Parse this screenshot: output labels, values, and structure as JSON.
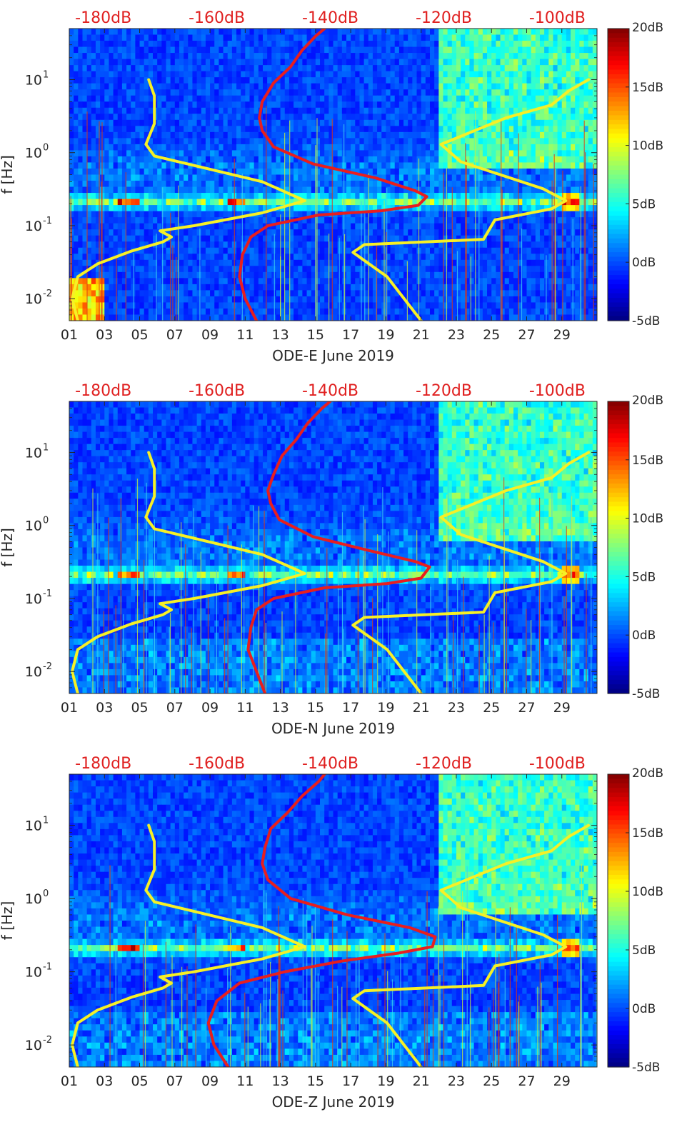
{
  "chart_data": [
    {
      "type": "heatmap",
      "title": "",
      "xlabel": "ODE-E June 2019",
      "ylabel": "f [Hz]",
      "x_ticks": [
        "01",
        "03",
        "05",
        "07",
        "09",
        "11",
        "13",
        "15",
        "17",
        "19",
        "21",
        "23",
        "25",
        "27",
        "29"
      ],
      "y_ticks": [
        {
          "v": 0.01,
          "label": "10",
          "exp": "-2"
        },
        {
          "v": 0.1,
          "label": "10",
          "exp": "-1"
        },
        {
          "v": 1,
          "label": "10",
          "exp": "0"
        },
        {
          "v": 10,
          "label": "10",
          "exp": "1"
        }
      ],
      "y_scale": "log",
      "ylim": [
        0.005,
        50
      ],
      "xlim": [
        1,
        31
      ],
      "top_axis_ticks": [
        {
          "v": -180,
          "label": "-180dB"
        },
        {
          "v": -160,
          "label": "-160dB"
        },
        {
          "v": -140,
          "label": "-140dB"
        },
        {
          "v": -120,
          "label": "-120dB"
        },
        {
          "v": -100,
          "label": "-100dB"
        }
      ],
      "top_axis_range": [
        -186,
        -93
      ],
      "colorbar": {
        "ticks": [
          {
            "v": 20,
            "label": "20dB"
          },
          {
            "v": 15,
            "label": "15dB"
          },
          {
            "v": 10,
            "label": "10dB"
          },
          {
            "v": 5,
            "label": "5dB"
          },
          {
            "v": 0,
            "label": "0dB"
          },
          {
            "v": -5,
            "label": "-5dB"
          }
        ],
        "range": [
          -5,
          20
        ]
      },
      "series": [
        {
          "color": "#e81e1e",
          "points": [
            [
              -153.0,
              0.005
            ],
            [
              -155.0,
              0.01
            ],
            [
              -156.0,
              0.02
            ],
            [
              -155.5,
              0.04
            ],
            [
              -154.0,
              0.07
            ],
            [
              -151.0,
              0.1
            ],
            [
              -142.0,
              0.14
            ],
            [
              -131.0,
              0.16
            ],
            [
              -124.5,
              0.19
            ],
            [
              -123.0,
              0.25
            ],
            [
              -125.0,
              0.3
            ],
            [
              -132.0,
              0.45
            ],
            [
              -143.0,
              0.7
            ],
            [
              -150.0,
              1.2
            ],
            [
              -152.0,
              2.0
            ],
            [
              -152.5,
              3.0
            ],
            [
              -152.0,
              5.0
            ],
            [
              -150.0,
              9.0
            ],
            [
              -147.0,
              15
            ],
            [
              -145.0,
              25
            ],
            [
              -142.5,
              40
            ],
            [
              -141.0,
              50
            ]
          ]
        },
        {
          "color": "#f6f026",
          "points": [
            [
              -184.5,
              0.005
            ],
            [
              -185.5,
              0.01
            ],
            [
              -184.5,
              0.02
            ],
            [
              -181.0,
              0.03
            ],
            [
              -175.0,
              0.045
            ],
            [
              -169.5,
              0.06
            ],
            [
              -168.0,
              0.07
            ],
            [
              -170.0,
              0.085
            ],
            [
              -164.0,
              0.1
            ],
            [
              -152.0,
              0.15
            ],
            [
              -144.5,
              0.22
            ],
            [
              -152.0,
              0.4
            ],
            [
              -171.0,
              0.9
            ],
            [
              -172.5,
              1.3
            ],
            [
              -171.0,
              2.5
            ],
            [
              -171.0,
              6.0
            ],
            [
              -172.0,
              10.0
            ]
          ]
        },
        {
          "color": "#f6f026",
          "points": [
            [
              -124.0,
              0.005
            ],
            [
              -130.0,
              0.02
            ],
            [
              -136.0,
              0.043
            ],
            [
              -134.0,
              0.055
            ],
            [
              -113.0,
              0.065
            ],
            [
              -111.0,
              0.12
            ],
            [
              -101.0,
              0.17
            ],
            [
              -98.5,
              0.22
            ],
            [
              -102.5,
              0.32
            ],
            [
              -117.0,
              0.75
            ],
            [
              -120.5,
              1.3
            ],
            [
              -109.0,
              3.0
            ],
            [
              -101.0,
              4.5
            ],
            [
              -98.0,
              7.0
            ],
            [
              -94.5,
              10.0
            ]
          ]
        }
      ]
    },
    {
      "type": "heatmap",
      "title": "",
      "xlabel": "ODE-N June 2019",
      "ylabel": "f [Hz]",
      "x_ticks": [
        "01",
        "03",
        "05",
        "07",
        "09",
        "11",
        "13",
        "15",
        "17",
        "19",
        "21",
        "23",
        "25",
        "27",
        "29"
      ],
      "y_ticks": [
        {
          "v": 0.01,
          "label": "10",
          "exp": "-2"
        },
        {
          "v": 0.1,
          "label": "10",
          "exp": "-1"
        },
        {
          "v": 1,
          "label": "10",
          "exp": "0"
        },
        {
          "v": 10,
          "label": "10",
          "exp": "1"
        }
      ],
      "y_scale": "log",
      "ylim": [
        0.005,
        50
      ],
      "xlim": [
        1,
        31
      ],
      "top_axis_ticks": [
        {
          "v": -180,
          "label": "-180dB"
        },
        {
          "v": -160,
          "label": "-160dB"
        },
        {
          "v": -140,
          "label": "-140dB"
        },
        {
          "v": -120,
          "label": "-120dB"
        },
        {
          "v": -100,
          "label": "-100dB"
        }
      ],
      "top_axis_range": [
        -186,
        -93
      ],
      "colorbar": {
        "ticks": [
          {
            "v": 20,
            "label": "20dB"
          },
          {
            "v": 15,
            "label": "15dB"
          },
          {
            "v": 10,
            "label": "10dB"
          },
          {
            "v": 5,
            "label": "5dB"
          },
          {
            "v": 0,
            "label": "0dB"
          },
          {
            "v": -5,
            "label": "-5dB"
          }
        ],
        "range": [
          -5,
          20
        ]
      },
      "series": [
        {
          "color": "#e81e1e",
          "points": [
            [
              -151.5,
              0.005
            ],
            [
              -153.0,
              0.01
            ],
            [
              -154.5,
              0.02
            ],
            [
              -154.0,
              0.04
            ],
            [
              -153.0,
              0.07
            ],
            [
              -150.0,
              0.1
            ],
            [
              -141.0,
              0.14
            ],
            [
              -130.0,
              0.16
            ],
            [
              -124.0,
              0.19
            ],
            [
              -122.5,
              0.27
            ],
            [
              -125.0,
              0.32
            ],
            [
              -133.0,
              0.45
            ],
            [
              -143.0,
              0.7
            ],
            [
              -149.0,
              1.2
            ],
            [
              -150.5,
              2.0
            ],
            [
              -151.0,
              3.0
            ],
            [
              -150.0,
              5.0
            ],
            [
              -148.5,
              9.0
            ],
            [
              -146.0,
              15
            ],
            [
              -144.0,
              25
            ],
            [
              -141.5,
              40
            ],
            [
              -140.0,
              50
            ]
          ]
        },
        {
          "color": "#f6f026",
          "points": [
            [
              -184.5,
              0.005
            ],
            [
              -185.5,
              0.01
            ],
            [
              -184.5,
              0.02
            ],
            [
              -181.0,
              0.03
            ],
            [
              -175.0,
              0.045
            ],
            [
              -169.5,
              0.06
            ],
            [
              -168.0,
              0.07
            ],
            [
              -170.0,
              0.085
            ],
            [
              -164.0,
              0.1
            ],
            [
              -152.0,
              0.15
            ],
            [
              -144.5,
              0.22
            ],
            [
              -152.0,
              0.4
            ],
            [
              -171.0,
              0.9
            ],
            [
              -172.5,
              1.3
            ],
            [
              -171.0,
              2.5
            ],
            [
              -171.0,
              6.0
            ],
            [
              -172.0,
              10.0
            ]
          ]
        },
        {
          "color": "#f6f026",
          "points": [
            [
              -124.0,
              0.005
            ],
            [
              -130.0,
              0.02
            ],
            [
              -136.0,
              0.043
            ],
            [
              -134.0,
              0.055
            ],
            [
              -113.0,
              0.065
            ],
            [
              -111.0,
              0.12
            ],
            [
              -101.0,
              0.17
            ],
            [
              -98.5,
              0.22
            ],
            [
              -102.5,
              0.32
            ],
            [
              -117.0,
              0.75
            ],
            [
              -120.5,
              1.3
            ],
            [
              -109.0,
              3.0
            ],
            [
              -101.0,
              4.5
            ],
            [
              -98.0,
              7.0
            ],
            [
              -94.5,
              10.0
            ]
          ]
        }
      ]
    },
    {
      "type": "heatmap",
      "title": "",
      "xlabel": "ODE-Z June 2019",
      "ylabel": "f [Hz]",
      "x_ticks": [
        "01",
        "03",
        "05",
        "07",
        "09",
        "11",
        "13",
        "15",
        "17",
        "19",
        "21",
        "23",
        "25",
        "27",
        "29"
      ],
      "y_ticks": [
        {
          "v": 0.01,
          "label": "10",
          "exp": "-2"
        },
        {
          "v": 0.1,
          "label": "10",
          "exp": "-1"
        },
        {
          "v": 1,
          "label": "10",
          "exp": "0"
        },
        {
          "v": 10,
          "label": "10",
          "exp": "1"
        }
      ],
      "y_scale": "log",
      "ylim": [
        0.005,
        50
      ],
      "xlim": [
        1,
        31
      ],
      "top_axis_ticks": [
        {
          "v": -180,
          "label": "-180dB"
        },
        {
          "v": -160,
          "label": "-160dB"
        },
        {
          "v": -140,
          "label": "-140dB"
        },
        {
          "v": -120,
          "label": "-120dB"
        },
        {
          "v": -100,
          "label": "-100dB"
        }
      ],
      "top_axis_range": [
        -186,
        -93
      ],
      "colorbar": {
        "ticks": [
          {
            "v": 20,
            "label": "20dB"
          },
          {
            "v": 15,
            "label": "15dB"
          },
          {
            "v": 10,
            "label": "10dB"
          },
          {
            "v": 5,
            "label": "5dB"
          },
          {
            "v": 0,
            "label": "0dB"
          },
          {
            "v": -5,
            "label": "-5dB"
          }
        ],
        "range": [
          -5,
          20
        ]
      },
      "series": [
        {
          "color": "#e81e1e",
          "points": [
            [
              -158.0,
              0.005
            ],
            [
              -160.5,
              0.01
            ],
            [
              -161.5,
              0.02
            ],
            [
              -160.0,
              0.04
            ],
            [
              -156.0,
              0.07
            ],
            [
              -148.0,
              0.1
            ],
            [
              -138.0,
              0.14
            ],
            [
              -128.0,
              0.18
            ],
            [
              -122.0,
              0.22
            ],
            [
              -121.5,
              0.3
            ],
            [
              -126.0,
              0.4
            ],
            [
              -137.0,
              0.6
            ],
            [
              -147.0,
              1.0
            ],
            [
              -151.0,
              1.8
            ],
            [
              -152.0,
              3.0
            ],
            [
              -151.5,
              5.0
            ],
            [
              -150.5,
              9.0
            ],
            [
              -147.5,
              15
            ],
            [
              -145.0,
              25
            ],
            [
              -142.0,
              40
            ],
            [
              -141.0,
              50
            ]
          ]
        },
        {
          "color": "#f6f026",
          "points": [
            [
              -184.5,
              0.005
            ],
            [
              -185.5,
              0.01
            ],
            [
              -184.5,
              0.02
            ],
            [
              -181.0,
              0.03
            ],
            [
              -175.0,
              0.045
            ],
            [
              -169.5,
              0.06
            ],
            [
              -168.0,
              0.07
            ],
            [
              -170.0,
              0.085
            ],
            [
              -164.0,
              0.1
            ],
            [
              -152.0,
              0.15
            ],
            [
              -144.5,
              0.22
            ],
            [
              -152.0,
              0.4
            ],
            [
              -171.0,
              0.9
            ],
            [
              -172.5,
              1.3
            ],
            [
              -171.0,
              2.5
            ],
            [
              -171.0,
              6.0
            ],
            [
              -172.0,
              10.0
            ]
          ]
        },
        {
          "color": "#f6f026",
          "points": [
            [
              -124.0,
              0.005
            ],
            [
              -130.0,
              0.02
            ],
            [
              -136.0,
              0.043
            ],
            [
              -134.0,
              0.055
            ],
            [
              -113.0,
              0.065
            ],
            [
              -111.0,
              0.12
            ],
            [
              -101.0,
              0.17
            ],
            [
              -98.5,
              0.22
            ],
            [
              -102.5,
              0.32
            ],
            [
              -117.0,
              0.75
            ],
            [
              -120.5,
              1.3
            ],
            [
              -109.0,
              3.0
            ],
            [
              -101.0,
              4.5
            ],
            [
              -98.0,
              7.0
            ],
            [
              -94.5,
              10.0
            ]
          ]
        }
      ]
    }
  ]
}
